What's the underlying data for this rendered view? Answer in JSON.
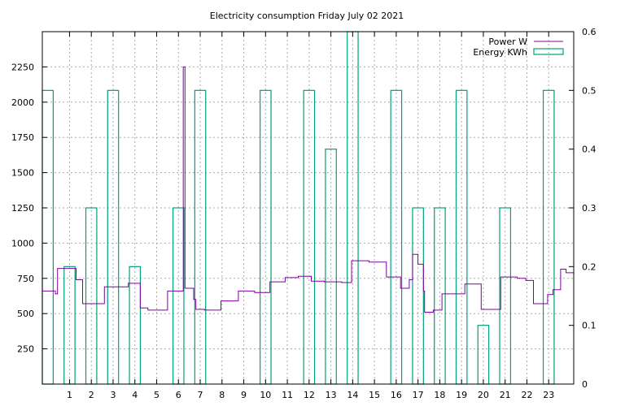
{
  "chart_data": {
    "type": "line",
    "title": "Electricity consumption Friday July 02 2021",
    "xlabel": "",
    "ylabel": "",
    "xlim": [
      -0.25,
      24.15
    ],
    "ylim": [
      0,
      2500
    ],
    "y2lim": [
      0,
      0.6
    ],
    "x_ticks": [
      1,
      2,
      3,
      4,
      5,
      6,
      7,
      8,
      9,
      10,
      11,
      12,
      13,
      14,
      15,
      16,
      17,
      18,
      19,
      20,
      21,
      22,
      23
    ],
    "y_ticks": [
      250,
      500,
      750,
      1000,
      1250,
      1500,
      1750,
      2000,
      2250
    ],
    "y2_ticks": [
      0,
      0.1,
      0.2,
      0.3,
      0.4,
      0.5,
      0.6
    ],
    "grid": true,
    "legend_position": "top-right",
    "series": [
      {
        "name": "Power W",
        "axis": "y",
        "color": "#8000a0",
        "style": "step",
        "x": [
          -0.25,
          0.35,
          0.35,
          0.45,
          0.45,
          1.3,
          1.3,
          1.6,
          1.6,
          2.6,
          2.6,
          3.0,
          3.0,
          3.7,
          3.7,
          4.25,
          4.25,
          4.6,
          4.6,
          5.5,
          5.5,
          6.1,
          6.1,
          6.22,
          6.22,
          6.3,
          6.3,
          6.4,
          6.4,
          6.7,
          6.7,
          6.8,
          6.8,
          7.2,
          7.2,
          7.95,
          7.95,
          8.75,
          8.75,
          9.5,
          9.5,
          10.2,
          10.2,
          10.9,
          10.9,
          11.5,
          11.5,
          12.1,
          12.1,
          12.7,
          12.7,
          13.5,
          13.5,
          13.95,
          13.95,
          14.75,
          14.75,
          15.55,
          15.55,
          16.2,
          16.2,
          16.6,
          16.6,
          16.75,
          16.75,
          17.0,
          17.0,
          17.25,
          17.25,
          17.3,
          17.3,
          17.7,
          17.7,
          18.1,
          18.1,
          19.15,
          19.15,
          19.9,
          19.9,
          20.7,
          20.7,
          20.8,
          20.8,
          21.55,
          21.55,
          21.95,
          21.95,
          22.3,
          22.3,
          22.95,
          22.95,
          23.2,
          23.2,
          23.55,
          23.55,
          23.8,
          23.8,
          24.15
        ],
        "values": [
          660,
          660,
          640,
          640,
          820,
          820,
          740,
          740,
          570,
          570,
          690,
          690,
          690,
          690,
          715,
          715,
          540,
          540,
          525,
          525,
          660,
          660,
          660,
          660,
          2250,
          2250,
          680,
          680,
          680,
          680,
          600,
          600,
          530,
          530,
          525,
          525,
          590,
          590,
          660,
          660,
          650,
          650,
          725,
          725,
          755,
          755,
          765,
          765,
          730,
          730,
          725,
          725,
          720,
          720,
          875,
          875,
          865,
          865,
          760,
          760,
          680,
          680,
          740,
          740,
          920,
          920,
          850,
          850,
          660,
          660,
          510,
          510,
          525,
          525,
          640,
          640,
          710,
          710,
          530,
          530,
          530,
          530,
          760,
          760,
          750,
          750,
          735,
          735,
          570,
          570,
          635,
          635,
          670,
          670,
          815,
          815,
          790,
          790
        ]
      },
      {
        "name": "Energy KWh",
        "axis": "y2",
        "color": "#00a07a",
        "style": "boxes",
        "x": [
          0,
          1,
          2,
          3,
          4,
          5,
          6,
          7,
          8,
          9,
          10,
          11,
          12,
          13,
          14,
          15,
          16,
          17,
          18,
          19,
          20,
          21,
          22,
          23
        ],
        "values": [
          0.5,
          0.2,
          0.3,
          0.5,
          0.2,
          0.0,
          0.3,
          0.5,
          0.0,
          0.0,
          0.5,
          0.0,
          0.5,
          0.4,
          0.6,
          0.0,
          0.5,
          0.3,
          0.3,
          0.5,
          0.1,
          0.3,
          0.0,
          0.5
        ]
      }
    ]
  }
}
